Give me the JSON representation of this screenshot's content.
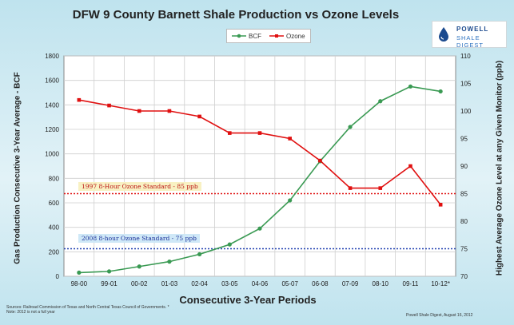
{
  "title": "DFW 9 County Barnett Shale Production vs Ozone Levels",
  "logo": {
    "line1": "POWELL",
    "line2": "SHALE DIGEST"
  },
  "footnote": "Sources: Railroad Commission of Texas and North Central Texas Council of Governments. * Note: 2012 is not a full year",
  "credit": "Powell Shale Digest, August 16, 2012",
  "colors": {
    "bcf": "#3a9a53",
    "ozone": "#e01010",
    "std85": "#e01010",
    "std75": "#1f3fb0"
  },
  "chart_data": {
    "type": "line",
    "title": "DFW 9 County Barnett Shale Production vs Ozone Levels",
    "xlabel": "Consecutive 3-Year Periods",
    "ylabel": "Gas Production Consecutive 3-Year Average - BCF",
    "y2label": "Highest Average Ozone Level at any Given Monitor (ppb)",
    "categories": [
      "98-00",
      "99-01",
      "00-02",
      "01-03",
      "02-04",
      "03-05",
      "04-06",
      "05-07",
      "06-08",
      "07-09",
      "08-10",
      "09-11",
      "10-12*"
    ],
    "ylim": [
      0,
      1800
    ],
    "yticks": [
      0,
      200,
      400,
      600,
      800,
      1000,
      1200,
      1400,
      1600,
      1800
    ],
    "y2lim": [
      70,
      110
    ],
    "y2ticks": [
      70,
      75,
      80,
      85,
      90,
      95,
      100,
      105,
      110
    ],
    "grid": true,
    "legend": "top-center",
    "series": [
      {
        "name": "BCF",
        "axis": "left",
        "values": [
          30,
          40,
          80,
          120,
          180,
          260,
          390,
          620,
          940,
          1220,
          1430,
          1550,
          1510
        ]
      },
      {
        "name": "Ozone",
        "axis": "right",
        "values": [
          102,
          101,
          100,
          100,
          99,
          96,
          96,
          95,
          91,
          86,
          86,
          90,
          83
        ]
      }
    ],
    "annotations": [
      {
        "label": "1997 8-Hour Ozone Standard - 85 ppb",
        "axis": "right",
        "value": 85
      },
      {
        "label": "2008 8-hour Ozone Standard - 75 ppb",
        "axis": "right",
        "value": 75
      }
    ]
  }
}
